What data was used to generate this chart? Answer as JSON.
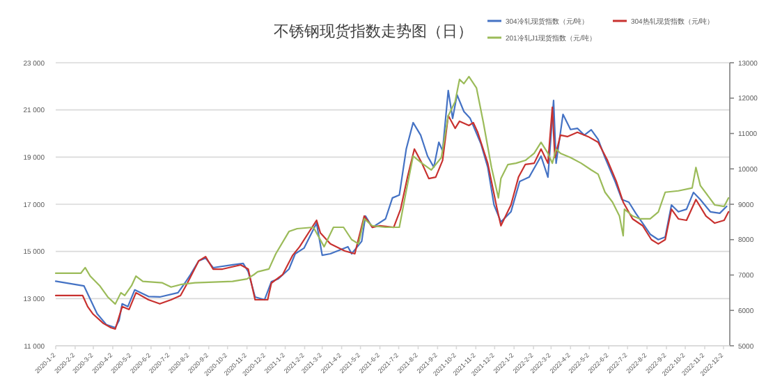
{
  "chart_data": {
    "type": "line",
    "title": "不锈钢现货指数走势图（日）",
    "xlim": [
      "2020-01-02",
      "2022-12-12"
    ],
    "xticks": [
      {
        "value": "2020-01-02",
        "label": "2020-1-2"
      },
      {
        "value": "2020-02-02",
        "label": "2020-2-2"
      },
      {
        "value": "2020-03-02",
        "label": "2020-3-2"
      },
      {
        "value": "2020-04-02",
        "label": "2020-4-2"
      },
      {
        "value": "2020-05-02",
        "label": "2020-5-2"
      },
      {
        "value": "2020-06-02",
        "label": "2020-6-2"
      },
      {
        "value": "2020-07-02",
        "label": "2020-7-2"
      },
      {
        "value": "2020-08-02",
        "label": "2020-8-2"
      },
      {
        "value": "2020-09-02",
        "label": "2020-9-2"
      },
      {
        "value": "2020-10-02",
        "label": "2020-10-2"
      },
      {
        "value": "2020-11-02",
        "label": "2020-11-2"
      },
      {
        "value": "2020-12-02",
        "label": "2020-12-2"
      },
      {
        "value": "2021-01-02",
        "label": "2021-1-2"
      },
      {
        "value": "2021-02-02",
        "label": "2021-2-2"
      },
      {
        "value": "2021-03-02",
        "label": "2021-3-2"
      },
      {
        "value": "2021-04-02",
        "label": "2021-4-2"
      },
      {
        "value": "2021-05-02",
        "label": "2021-5-2"
      },
      {
        "value": "2021-06-02",
        "label": "2021-6-2"
      },
      {
        "value": "2021-07-02",
        "label": "2021-7-2"
      },
      {
        "value": "2021-08-02",
        "label": "2021-8-2"
      },
      {
        "value": "2021-09-02",
        "label": "2021-9-2"
      },
      {
        "value": "2021-10-02",
        "label": "2021-10-2"
      },
      {
        "value": "2021-11-02",
        "label": "2021-11-2"
      },
      {
        "value": "2021-12-02",
        "label": "2021-12-2"
      },
      {
        "value": "2022-01-02",
        "label": "2022-1-2"
      },
      {
        "value": "2022-02-02",
        "label": "2022-2-2"
      },
      {
        "value": "2022-03-02",
        "label": "2022-3-2"
      },
      {
        "value": "2022-04-02",
        "label": "2022-4-2"
      },
      {
        "value": "2022-05-02",
        "label": "2022-5-2"
      },
      {
        "value": "2022-06-02",
        "label": "2022-6-2"
      },
      {
        "value": "2022-07-02",
        "label": "2022-7-2"
      },
      {
        "value": "2022-08-02",
        "label": "2022-8-2"
      },
      {
        "value": "2022-09-02",
        "label": "2022-9-2"
      },
      {
        "value": "2022-10-02",
        "label": "2022-10-2"
      },
      {
        "value": "2022-11-02",
        "label": "2022-11-2"
      },
      {
        "value": "2022-12-02",
        "label": "2022-12-2"
      }
    ],
    "ylim": [
      11000,
      23000
    ],
    "yticks": [
      {
        "value": 11000,
        "label": "11 000"
      },
      {
        "value": 13000,
        "label": "13 000"
      },
      {
        "value": 15000,
        "label": "15 000"
      },
      {
        "value": 17000,
        "label": "17 000"
      },
      {
        "value": 19000,
        "label": "19 000"
      },
      {
        "value": 21000,
        "label": "21 000"
      },
      {
        "value": 23000,
        "label": "23 000"
      }
    ],
    "y2lim": [
      5000,
      13000
    ],
    "y2ticks": [
      5000,
      6000,
      7000,
      8000,
      9000,
      10000,
      11000,
      12000,
      13000
    ],
    "grid": "y",
    "legend": "top right",
    "series": [
      {
        "name": "304冷轧现货指数（元/吨）",
        "color": "#4472c4",
        "x": [
          "2020-01-02",
          "2020-02-16",
          "2020-03-08",
          "2020-03-23",
          "2020-04-06",
          "2020-04-12",
          "2020-04-17",
          "2020-04-26",
          "2020-05-07",
          "2020-05-29",
          "2020-06-16",
          "2020-07-15",
          "2020-07-26",
          "2020-08-04",
          "2020-08-17",
          "2020-08-28",
          "2020-09-09",
          "2020-10-10",
          "2020-10-27",
          "2020-11-04",
          "2020-11-15",
          "2020-11-30",
          "2020-12-11",
          "2020-12-22",
          "2021-01-08",
          "2021-01-18",
          "2021-02-01",
          "2021-02-21",
          "2021-03-02",
          "2021-03-15",
          "2021-04-12",
          "2021-04-18",
          "2021-05-04",
          "2021-05-10",
          "2021-05-21",
          "2021-06-11",
          "2021-06-22",
          "2021-07-03",
          "2021-07-14",
          "2021-07-25",
          "2021-08-06",
          "2021-08-17",
          "2021-08-27",
          "2021-09-04",
          "2021-09-10",
          "2021-09-19",
          "2021-09-26",
          "2021-10-03",
          "2021-10-14",
          "2021-10-24",
          "2021-11-10",
          "2021-11-21",
          "2021-12-01",
          "2021-12-12",
          "2021-12-28",
          "2022-01-11",
          "2022-01-26",
          "2022-02-14",
          "2022-02-25",
          "2022-03-06",
          "2022-03-10",
          "2022-03-21",
          "2022-04-02",
          "2022-04-13",
          "2022-04-24",
          "2022-05-05",
          "2022-05-16",
          "2022-05-27",
          "2022-06-12",
          "2022-06-23",
          "2022-07-04",
          "2022-07-15",
          "2022-07-26",
          "2022-08-07",
          "2022-08-20",
          "2022-08-31",
          "2022-09-10",
          "2022-09-21",
          "2022-10-04",
          "2022-10-15",
          "2022-10-26",
          "2022-11-11",
          "2022-11-26",
          "2022-12-07"
        ],
        "values": [
          13740,
          13540,
          12360,
          11890,
          11770,
          12070,
          12780,
          12660,
          13370,
          13090,
          13070,
          13250,
          13660,
          14020,
          14600,
          14720,
          14310,
          14430,
          14490,
          14140,
          13070,
          12950,
          13720,
          13840,
          14250,
          14900,
          15140,
          16200,
          14840,
          14900,
          15200,
          14900,
          15430,
          16500,
          16020,
          16380,
          17270,
          17390,
          19340,
          20460,
          19930,
          19040,
          18570,
          19630,
          19270,
          21820,
          20640,
          21640,
          20930,
          20640,
          19570,
          18570,
          16970,
          16250,
          16680,
          17970,
          18150,
          19040,
          18150,
          21400,
          18740,
          20810,
          20170,
          20220,
          19930,
          20160,
          19750,
          18980,
          17970,
          17200,
          17090,
          16620,
          16200,
          15730,
          15500,
          15610,
          16970,
          16680,
          16790,
          17500,
          17200,
          16680,
          16620,
          16910
        ]
      },
      {
        "name": "304热轧现货指数（元/吨）",
        "color": "#c8312f",
        "x": [
          "2020-01-02",
          "2020-02-14",
          "2020-02-22",
          "2020-03-01",
          "2020-03-18",
          "2020-03-30",
          "2020-04-06",
          "2020-04-17",
          "2020-04-28",
          "2020-05-09",
          "2020-05-29",
          "2020-06-16",
          "2020-07-04",
          "2020-07-19",
          "2020-07-30",
          "2020-08-17",
          "2020-08-28",
          "2020-09-09",
          "2020-09-24",
          "2020-10-23",
          "2020-11-04",
          "2020-11-15",
          "2020-12-05",
          "2020-12-11",
          "2020-12-29",
          "2021-01-14",
          "2021-01-25",
          "2021-02-21",
          "2021-02-27",
          "2021-03-15",
          "2021-04-07",
          "2021-04-23",
          "2021-05-08",
          "2021-05-21",
          "2021-06-02",
          "2021-06-24",
          "2021-07-05",
          "2021-07-16",
          "2021-07-27",
          "2021-08-08",
          "2021-08-19",
          "2021-08-30",
          "2021-09-10",
          "2021-09-19",
          "2021-09-30",
          "2021-10-07",
          "2021-10-22",
          "2021-10-29",
          "2021-11-05",
          "2021-11-21",
          "2021-12-06",
          "2021-12-12",
          "2021-12-28",
          "2022-01-09",
          "2022-01-20",
          "2022-02-03",
          "2022-02-14",
          "2022-02-25",
          "2022-03-04",
          "2022-03-08",
          "2022-03-17",
          "2022-03-28",
          "2022-04-13",
          "2022-04-30",
          "2022-05-16",
          "2022-05-31",
          "2022-06-14",
          "2022-06-25",
          "2022-07-10",
          "2022-07-26",
          "2022-08-09",
          "2022-08-20",
          "2022-08-31",
          "2022-09-10",
          "2022-09-21",
          "2022-10-04",
          "2022-10-19",
          "2022-11-04",
          "2022-11-18",
          "2022-12-03",
          "2022-12-10"
        ],
        "values": [
          13130,
          13130,
          12660,
          12360,
          11950,
          11770,
          11710,
          12660,
          12540,
          13250,
          12950,
          12780,
          12950,
          13130,
          13660,
          14600,
          14780,
          14250,
          14250,
          14430,
          14250,
          12950,
          12950,
          13660,
          14020,
          14840,
          15200,
          16320,
          15790,
          15320,
          15020,
          14900,
          16500,
          16020,
          16090,
          16020,
          16790,
          18150,
          19340,
          18740,
          18090,
          18150,
          18860,
          20760,
          20220,
          20520,
          20340,
          20460,
          20050,
          18740,
          16790,
          16090,
          16970,
          18150,
          18690,
          18740,
          19340,
          18740,
          21110,
          18980,
          19930,
          19870,
          20050,
          19870,
          19630,
          18860,
          17970,
          17090,
          16380,
          16090,
          15500,
          15320,
          15500,
          16790,
          16380,
          16320,
          17200,
          16500,
          16200,
          16320,
          16680
        ]
      },
      {
        "name": "201冷轧J1现货指数（元/吨）",
        "color": "#9bbb59",
        "axis": "y2",
        "x": [
          "2020-01-02",
          "2020-02-11",
          "2020-02-18",
          "2020-02-26",
          "2020-03-12",
          "2020-03-25",
          "2020-04-06",
          "2020-04-15",
          "2020-04-21",
          "2020-05-02",
          "2020-05-09",
          "2020-05-20",
          "2020-06-20",
          "2020-07-04",
          "2020-07-19",
          "2020-08-11",
          "2020-10-10",
          "2020-11-02",
          "2020-11-13",
          "2020-11-19",
          "2020-12-07",
          "2020-12-18",
          "2021-01-08",
          "2021-01-21",
          "2021-02-16",
          "2021-03-05",
          "2021-03-20",
          "2021-04-05",
          "2021-04-18",
          "2021-04-29",
          "2021-05-08",
          "2021-05-21",
          "2021-06-11",
          "2021-07-03",
          "2021-07-14",
          "2021-07-25",
          "2021-08-08",
          "2021-08-23",
          "2021-09-08",
          "2021-09-19",
          "2021-09-30",
          "2021-10-07",
          "2021-10-14",
          "2021-10-22",
          "2021-11-03",
          "2021-11-14",
          "2021-11-27",
          "2021-12-08",
          "2021-12-12",
          "2021-12-23",
          "2022-01-05",
          "2022-01-20",
          "2022-02-03",
          "2022-02-14",
          "2022-02-25",
          "2022-03-04",
          "2022-03-10",
          "2022-03-17",
          "2022-04-02",
          "2022-04-19",
          "2022-05-05",
          "2022-05-16",
          "2022-05-27",
          "2022-06-08",
          "2022-06-19",
          "2022-06-25",
          "2022-06-27",
          "2022-07-10",
          "2022-07-21",
          "2022-08-07",
          "2022-08-20",
          "2022-08-31",
          "2022-09-21",
          "2022-10-13",
          "2022-10-19",
          "2022-10-26",
          "2022-11-18",
          "2022-12-03",
          "2022-12-10"
        ],
        "values": [
          7050,
          7050,
          7210,
          6970,
          6700,
          6380,
          6180,
          6500,
          6420,
          6700,
          6970,
          6820,
          6780,
          6660,
          6730,
          6780,
          6820,
          6890,
          7010,
          7090,
          7170,
          7600,
          8230,
          8310,
          8350,
          7800,
          8350,
          8350,
          8000,
          7880,
          8590,
          8390,
          8350,
          8350,
          9380,
          10360,
          10160,
          9970,
          10320,
          11500,
          11900,
          12530,
          12410,
          12610,
          12290,
          11310,
          10040,
          9180,
          9730,
          10120,
          10160,
          10240,
          10440,
          10750,
          10440,
          10160,
          10560,
          10440,
          10320,
          10160,
          9970,
          9850,
          9340,
          9060,
          8670,
          8110,
          8860,
          8670,
          8590,
          8590,
          8780,
          9340,
          9380,
          9460,
          10040,
          9530,
          8980,
          8940,
          9180
        ]
      }
    ]
  }
}
